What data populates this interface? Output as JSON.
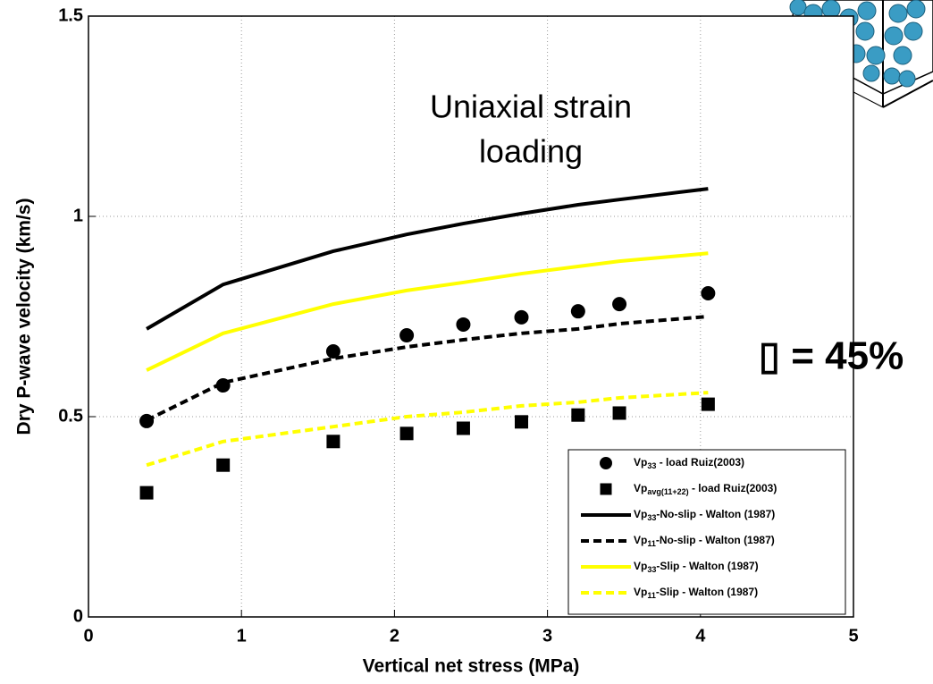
{
  "chart_data": {
    "type": "line",
    "xlabel": "Vertical net stress (MPa)",
    "ylabel": "Dry P-wave velocity (km/s)",
    "xlim": [
      0,
      5
    ],
    "xticks": [
      0,
      1,
      2,
      3,
      4,
      5
    ],
    "ylim": [
      0,
      1.5
    ],
    "yticks": [
      0,
      0.5,
      1,
      1.5
    ],
    "grid": true,
    "legend": "lower right",
    "annotations": [
      "Uniaxial strain",
      "loading",
      "▯ = 45%"
    ],
    "x": [
      0.38,
      0.88,
      1.6,
      2.08,
      2.45,
      2.83,
      3.2,
      3.47,
      4.05
    ],
    "series": [
      {
        "name": [
          "Vp",
          "33",
          " - load Ruiz(2003)"
        ],
        "kind": "scatter",
        "marker": "circle",
        "color": "#000000",
        "values": [
          0.489,
          0.578,
          0.663,
          0.703,
          0.73,
          0.748,
          0.763,
          0.781,
          0.808
        ]
      },
      {
        "name": [
          "Vp",
          "avg(11+22)",
          " - load Ruiz(2003)"
        ],
        "kind": "scatter",
        "marker": "square",
        "color": "#000000",
        "values": [
          0.31,
          0.379,
          0.438,
          0.458,
          0.471,
          0.487,
          0.504,
          0.509,
          0.531
        ]
      },
      {
        "name": [
          "Vp",
          "33",
          "-No-slip - Walton (1987)"
        ],
        "kind": "line",
        "dashed": false,
        "color": "#000000",
        "values": [
          0.719,
          0.83,
          0.913,
          0.955,
          0.982,
          1.007,
          1.029,
          1.042,
          1.069
        ]
      },
      {
        "name": [
          "Vp",
          "11",
          "-No-slip - Walton (1987)"
        ],
        "kind": "line",
        "dashed": true,
        "color": "#000000",
        "values": [
          0.491,
          0.585,
          0.645,
          0.674,
          0.692,
          0.708,
          0.719,
          0.732,
          0.75
        ]
      },
      {
        "name": [
          "Vp",
          "33",
          "-Slip - Walton (1987)"
        ],
        "kind": "line",
        "dashed": false,
        "color": "#ffff00",
        "values": [
          0.616,
          0.708,
          0.781,
          0.815,
          0.835,
          0.857,
          0.875,
          0.888,
          0.908
        ]
      },
      {
        "name": [
          "Vp",
          "11",
          "-Slip - Walton (1987)"
        ],
        "kind": "line",
        "dashed": true,
        "color": "#ffff00",
        "values": [
          0.379,
          0.438,
          0.475,
          0.5,
          0.511,
          0.527,
          0.536,
          0.547,
          0.56
        ]
      }
    ]
  }
}
